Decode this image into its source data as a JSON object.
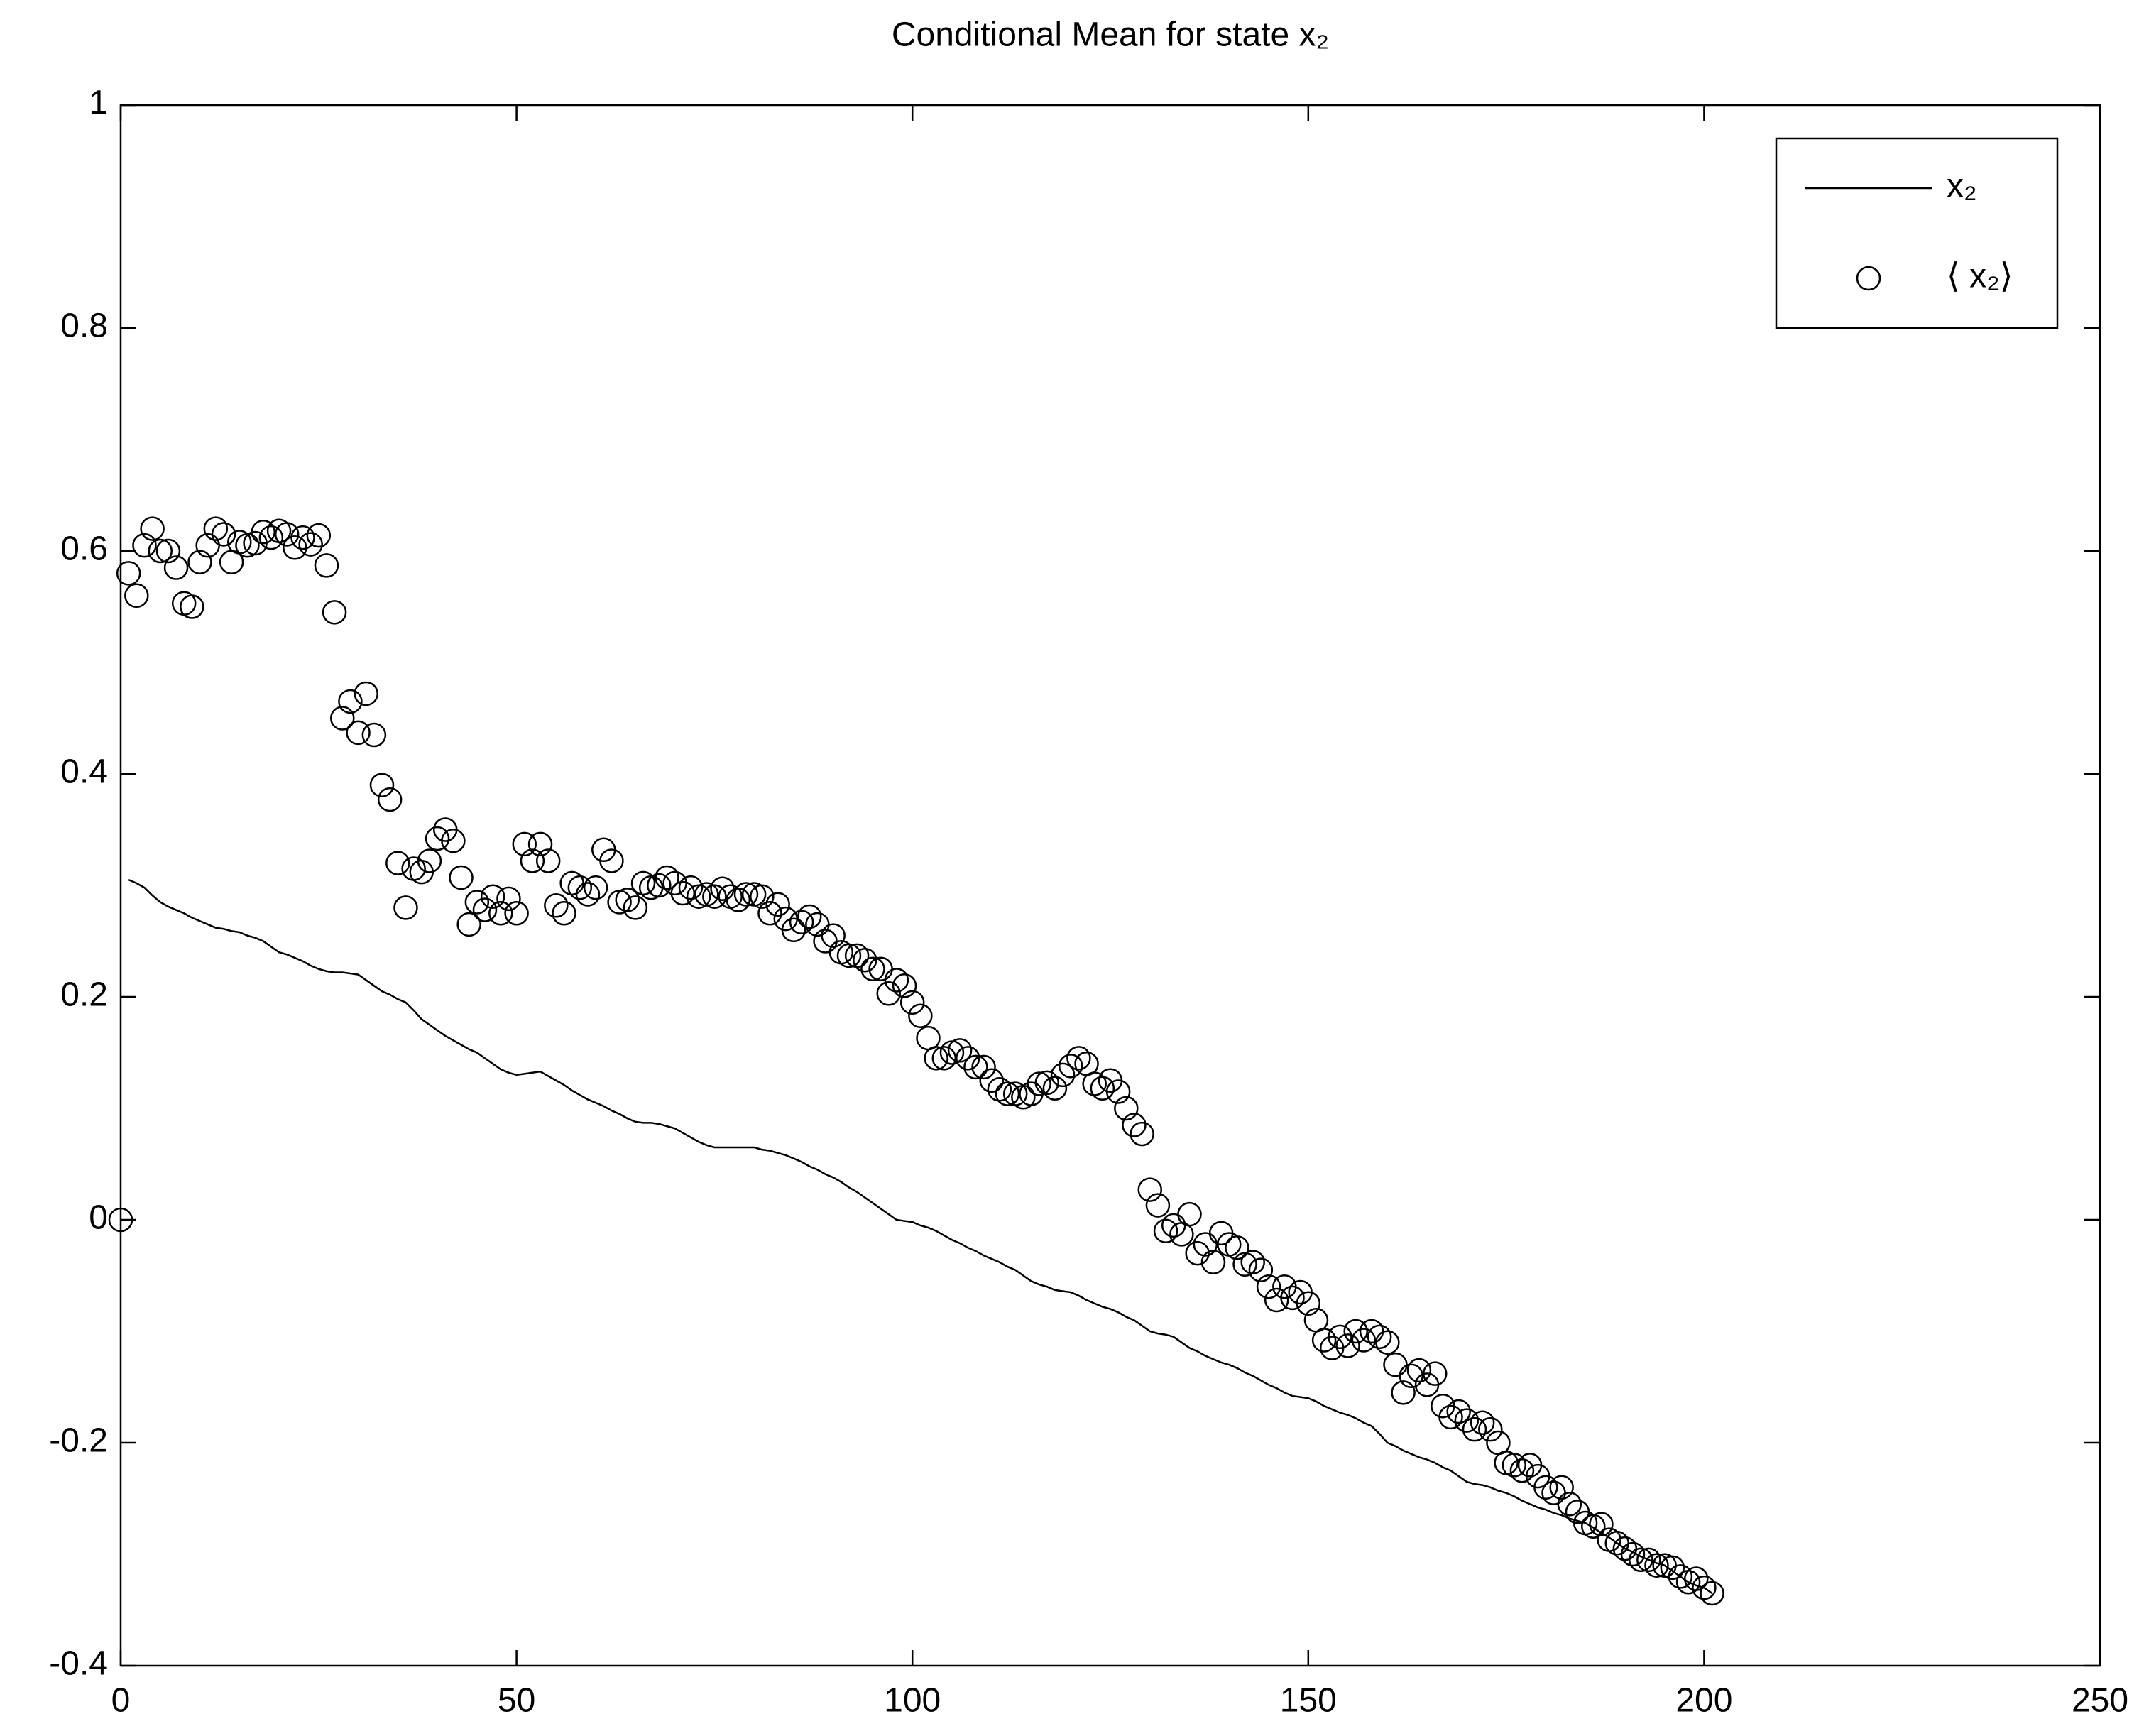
{
  "chart_data": {
    "type": "line+scatter",
    "title": "Conditional Mean  for state x₂",
    "x": [
      0,
      1,
      2,
      3,
      4,
      5,
      6,
      7,
      8,
      9,
      10,
      11,
      12,
      13,
      14,
      15,
      16,
      17,
      18,
      19,
      20,
      21,
      22,
      23,
      24,
      25,
      26,
      27,
      28,
      29,
      30,
      31,
      32,
      33,
      34,
      35,
      36,
      37,
      38,
      39,
      40,
      41,
      42,
      43,
      44,
      45,
      46,
      47,
      48,
      49,
      50,
      51,
      52,
      53,
      54,
      55,
      56,
      57,
      58,
      59,
      60,
      61,
      62,
      63,
      64,
      65,
      66,
      67,
      68,
      69,
      70,
      71,
      72,
      73,
      74,
      75,
      76,
      77,
      78,
      79,
      80,
      81,
      82,
      83,
      84,
      85,
      86,
      87,
      88,
      89,
      90,
      91,
      92,
      93,
      94,
      95,
      96,
      97,
      98,
      99,
      100,
      101,
      102,
      103,
      104,
      105,
      106,
      107,
      108,
      109,
      110,
      111,
      112,
      113,
      114,
      115,
      116,
      117,
      118,
      119,
      120,
      121,
      122,
      123,
      124,
      125,
      126,
      127,
      128,
      129,
      130,
      131,
      132,
      133,
      134,
      135,
      136,
      137,
      138,
      139,
      140,
      141,
      142,
      143,
      144,
      145,
      146,
      147,
      148,
      149,
      150,
      151,
      152,
      153,
      154,
      155,
      156,
      157,
      158,
      159,
      160,
      161,
      162,
      163,
      164,
      165,
      166,
      167,
      168,
      169,
      170,
      171,
      172,
      173,
      174,
      175,
      176,
      177,
      178,
      179,
      180,
      181,
      182,
      183,
      184,
      185,
      186,
      187,
      188,
      189,
      190,
      191,
      192,
      193,
      194,
      195,
      196,
      197,
      198,
      199,
      200,
      201
    ],
    "series": [
      {
        "name": "x₂",
        "kind": "line",
        "color": "#000000",
        "values": [
          null,
          0.305,
          0.302,
          0.298,
          0.291,
          0.285,
          0.281,
          0.278,
          0.275,
          0.271,
          0.268,
          0.265,
          0.262,
          0.261,
          0.259,
          0.258,
          0.255,
          0.253,
          0.25,
          0.245,
          0.24,
          0.238,
          0.235,
          0.232,
          0.228,
          0.225,
          0.223,
          0.222,
          0.222,
          0.221,
          0.22,
          0.215,
          0.21,
          0.205,
          0.202,
          0.198,
          0.195,
          0.188,
          0.18,
          0.175,
          0.17,
          0.165,
          0.161,
          0.157,
          0.153,
          0.15,
          0.145,
          0.14,
          0.135,
          0.132,
          0.13,
          0.131,
          0.132,
          0.133,
          0.129,
          0.125,
          0.121,
          0.116,
          0.112,
          0.108,
          0.105,
          0.102,
          0.098,
          0.095,
          0.091,
          0.088,
          0.087,
          0.087,
          0.086,
          0.084,
          0.082,
          0.078,
          0.074,
          0.07,
          0.067,
          0.065,
          0.065,
          0.065,
          0.065,
          0.065,
          0.065,
          0.063,
          0.062,
          0.06,
          0.058,
          0.055,
          0.052,
          0.048,
          0.045,
          0.041,
          0.038,
          0.034,
          0.029,
          0.025,
          0.02,
          0.015,
          0.01,
          0.005,
          0.0,
          -0.001,
          -0.002,
          -0.005,
          -0.007,
          -0.01,
          -0.014,
          -0.018,
          -0.021,
          -0.025,
          -0.028,
          -0.032,
          -0.035,
          -0.038,
          -0.042,
          -0.045,
          -0.05,
          -0.055,
          -0.058,
          -0.06,
          -0.063,
          -0.064,
          -0.065,
          -0.068,
          -0.072,
          -0.075,
          -0.078,
          -0.08,
          -0.083,
          -0.087,
          -0.09,
          -0.095,
          -0.1,
          -0.102,
          -0.103,
          -0.105,
          -0.11,
          -0.115,
          -0.118,
          -0.122,
          -0.125,
          -0.128,
          -0.13,
          -0.133,
          -0.137,
          -0.14,
          -0.144,
          -0.148,
          -0.151,
          -0.155,
          -0.158,
          -0.159,
          -0.16,
          -0.163,
          -0.167,
          -0.17,
          -0.173,
          -0.175,
          -0.178,
          -0.182,
          -0.185,
          -0.192,
          -0.2,
          -0.203,
          -0.207,
          -0.21,
          -0.213,
          -0.215,
          -0.218,
          -0.222,
          -0.225,
          -0.23,
          -0.235,
          -0.237,
          -0.238,
          -0.24,
          -0.243,
          -0.245,
          -0.248,
          -0.252,
          -0.255,
          -0.258,
          -0.26,
          -0.263,
          -0.265,
          -0.268,
          -0.27,
          -0.272,
          -0.276,
          -0.281,
          -0.285,
          -0.29,
          -0.295,
          -0.298,
          -0.302,
          -0.305,
          -0.308,
          -0.31,
          -0.315,
          -0.32,
          -0.325,
          -0.328,
          -0.33,
          -0.335
        ]
      },
      {
        "name": "⟨ x₂⟩",
        "kind": "scatter",
        "color": "#000000",
        "values": [
          0,
          0.58,
          0.56,
          0.605,
          0.62,
          0.6,
          0.6,
          0.585,
          0.553,
          0.55,
          0.59,
          0.605,
          0.62,
          0.615,
          0.59,
          0.608,
          0.605,
          0.607,
          0.617,
          0.612,
          0.618,
          0.615,
          0.603,
          0.612,
          0.606,
          0.614,
          0.587,
          0.545,
          0.45,
          0.465,
          0.437,
          0.472,
          0.435,
          0.39,
          0.377,
          0.32,
          0.28,
          0.315,
          0.312,
          0.322,
          0.342,
          0.35,
          0.34,
          0.307,
          0.265,
          0.285,
          0.278,
          0.29,
          0.275,
          0.288,
          0.275,
          0.337,
          0.322,
          0.337,
          0.322,
          0.282,
          0.275,
          0.302,
          0.298,
          0.292,
          0.298,
          0.332,
          0.322,
          0.285,
          0.287,
          0.28,
          0.302,
          0.298,
          0.3,
          0.307,
          0.302,
          0.293,
          0.298,
          0.29,
          0.292,
          0.29,
          0.297,
          0.29,
          0.287,
          0.292,
          0.292,
          0.29,
          0.275,
          0.283,
          0.27,
          0.26,
          0.267,
          0.272,
          0.265,
          0.25,
          0.255,
          0.24,
          0.237,
          0.237,
          0.233,
          0.225,
          0.225,
          0.203,
          0.215,
          0.21,
          0.195,
          0.183,
          0.163,
          0.145,
          0.145,
          0.15,
          0.152,
          0.145,
          0.137,
          0.137,
          0.125,
          0.117,
          0.113,
          0.113,
          0.11,
          0.113,
          0.122,
          0.123,
          0.118,
          0.13,
          0.138,
          0.145,
          0.14,
          0.122,
          0.118,
          0.125,
          0.115,
          0.1,
          0.085,
          0.077,
          0.027,
          0.013,
          -0.01,
          -0.005,
          -0.013,
          0.005,
          -0.03,
          -0.022,
          -0.038,
          -0.012,
          -0.022,
          -0.025,
          -0.04,
          -0.038,
          -0.045,
          -0.06,
          -0.072,
          -0.06,
          -0.07,
          -0.065,
          -0.075,
          -0.09,
          -0.108,
          -0.115,
          -0.105,
          -0.113,
          -0.1,
          -0.108,
          -0.1,
          -0.105,
          -0.11,
          -0.13,
          -0.155,
          -0.14,
          -0.135,
          -0.148,
          -0.138,
          -0.167,
          -0.177,
          -0.172,
          -0.18,
          -0.188,
          -0.182,
          -0.188,
          -0.2,
          -0.218,
          -0.22,
          -0.225,
          -0.22,
          -0.23,
          -0.24,
          -0.245,
          -0.24,
          -0.255,
          -0.262,
          -0.272,
          -0.275,
          -0.273,
          -0.287,
          -0.29,
          -0.295,
          -0.3,
          -0.305,
          -0.305,
          -0.31,
          -0.31,
          -0.312,
          -0.32,
          -0.325,
          -0.322,
          -0.33,
          -0.335
        ]
      }
    ],
    "xlim": [
      0,
      250
    ],
    "xticks": [
      0,
      50,
      100,
      150,
      200,
      250
    ],
    "ylim": [
      -0.4,
      1
    ],
    "yticks": [
      -0.4,
      -0.2,
      0,
      0.2,
      0.4,
      0.6,
      0.8,
      1
    ],
    "grid": false,
    "legend": "upper right"
  }
}
